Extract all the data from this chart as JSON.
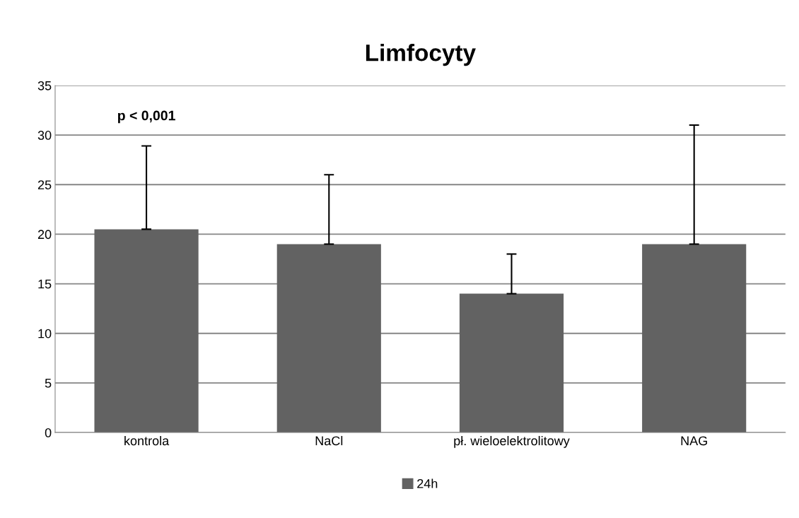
{
  "chart_data": {
    "type": "bar",
    "title": "Limfocyty",
    "categories": [
      "kontrola",
      "NaCl",
      "pł. wieloelektrolitowy",
      "NAG"
    ],
    "series": [
      {
        "name": "24h",
        "color": "#626262",
        "values": [
          20.5,
          19,
          14,
          19
        ],
        "errors": [
          [
            20.5,
            28.9
          ],
          [
            19,
            26
          ],
          [
            14,
            18
          ],
          [
            19,
            31
          ]
        ]
      }
    ],
    "ylim": [
      0,
      35
    ],
    "yticks": [
      0,
      5,
      10,
      15,
      20,
      25,
      30,
      35
    ],
    "grid": "y",
    "legend": "bottom",
    "annotations": [
      "p < 0,001"
    ]
  }
}
